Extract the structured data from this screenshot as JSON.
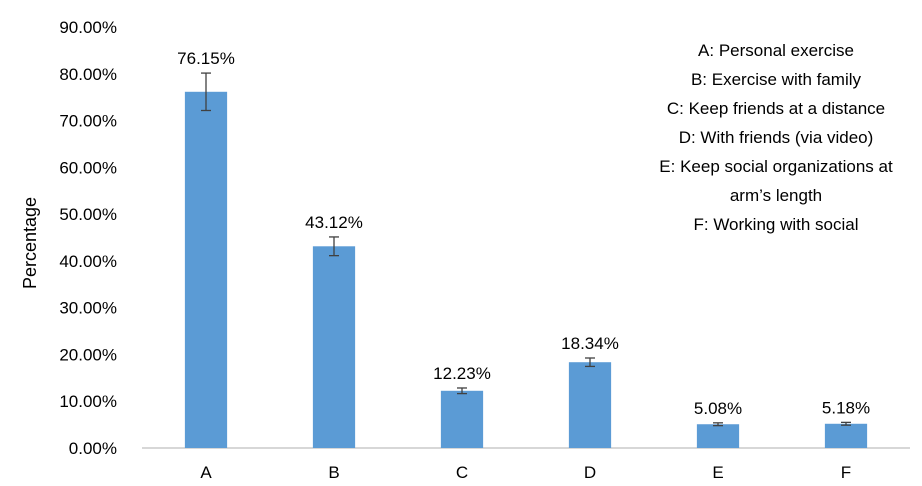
{
  "chart_data": {
    "type": "bar",
    "title": "",
    "xlabel": "",
    "ylabel": "Percentage",
    "ylim": [
      0,
      90
    ],
    "yticks": [
      "0.00%",
      "10.00%",
      "20.00%",
      "30.00%",
      "40.00%",
      "50.00%",
      "60.00%",
      "70.00%",
      "80.00%",
      "90.00%"
    ],
    "categories": [
      "A",
      "B",
      "C",
      "D",
      "E",
      "F"
    ],
    "values": [
      76.15,
      43.12,
      12.23,
      18.34,
      5.08,
      5.18
    ],
    "value_labels": [
      "76.15%",
      "43.12%",
      "12.23%",
      "18.34%",
      "5.08%",
      "5.18%"
    ],
    "error": [
      4.0,
      2.0,
      0.6,
      0.9,
      0.3,
      0.3
    ],
    "bar_color": "#5b9bd5",
    "grid": false,
    "legend_lines": [
      "A: Personal exercise",
      "B: Exercise with family",
      "C: Keep friends at a distance",
      "D: With friends (via video)",
      "E: Keep social organizations at",
      "arm’s length",
      "F: Working with social"
    ]
  }
}
